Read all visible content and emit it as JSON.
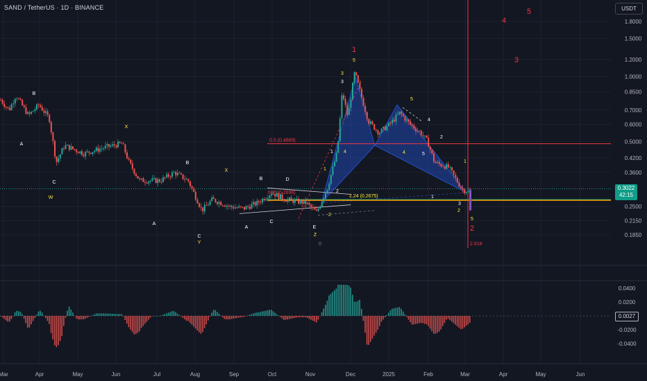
{
  "header": {
    "title": "SAND / TetherUS · 1D · BINANCE",
    "currency": "USDT"
  },
  "price_badge": {
    "price": "0.3022",
    "countdown": "42:15"
  },
  "osc_badge": "0.0027",
  "colors": {
    "bg": "#131722",
    "up": "#26a69a",
    "down": "#ef5350",
    "fib_red": "#f23645",
    "pattern_fill": "#2962ff",
    "orange": "#ff9800",
    "label_white": "#ffffff",
    "label_yellow": "#ffeb3b"
  },
  "chart_data": [
    {
      "type": "candlestick",
      "scale": "log",
      "ylim": [
        0.16,
        2.0
      ],
      "x_ticks": [
        "Mar",
        "Apr",
        "May",
        "Jun",
        "Jul",
        "Aug",
        "Sep",
        "Oct",
        "Nov",
        "Dec",
        "2025",
        "Feb",
        "Mar",
        "Apr",
        "May",
        "Jun"
      ],
      "y_ticks": [
        "1.8000",
        "1.5000",
        "1.2000",
        "1.0000",
        "0.8500",
        "0.7000",
        "0.6000",
        "0.5000",
        "0.4200",
        "0.3600",
        "0.2500",
        "0.2150",
        "0.1850"
      ],
      "series": [
        {
          "x": "2024-03",
          "y": 0.78
        },
        {
          "x": "2024-03-15",
          "y": 0.72
        },
        {
          "x": "2024-04-01",
          "y": 0.66
        },
        {
          "x": "2024-04-10",
          "y": 0.75
        },
        {
          "x": "2024-04-20",
          "y": 0.62
        },
        {
          "x": "2024-05-01",
          "y": 0.45
        },
        {
          "x": "2024-05-15",
          "y": 0.47
        },
        {
          "x": "2024-06-01",
          "y": 0.45
        },
        {
          "x": "2024-06-10",
          "y": 0.47
        },
        {
          "x": "2024-06-20",
          "y": 0.42
        },
        {
          "x": "2024-07-01",
          "y": 0.33
        },
        {
          "x": "2024-07-15",
          "y": 0.32
        },
        {
          "x": "2024-07-25",
          "y": 0.35
        },
        {
          "x": "2024-08-05",
          "y": 0.24
        },
        {
          "x": "2024-08-20",
          "y": 0.27
        },
        {
          "x": "2024-09-05",
          "y": 0.25
        },
        {
          "x": "2024-09-20",
          "y": 0.26
        },
        {
          "x": "2024-10-01",
          "y": 0.29
        },
        {
          "x": "2024-10-15",
          "y": 0.27
        },
        {
          "x": "2024-11-01",
          "y": 0.24
        },
        {
          "x": "2024-11-10",
          "y": 0.3
        },
        {
          "x": "2024-11-20",
          "y": 0.6
        },
        {
          "x": "2024-12-01",
          "y": 0.9
        },
        {
          "x": "2024-12-10",
          "y": 0.68
        },
        {
          "x": "2024-12-20",
          "y": 0.55
        },
        {
          "x": "2025-01-01",
          "y": 0.6
        },
        {
          "x": "2025-01-10",
          "y": 0.66
        },
        {
          "x": "2025-01-20",
          "y": 0.58
        },
        {
          "x": "2025-02-01",
          "y": 0.48
        },
        {
          "x": "2025-02-10",
          "y": 0.4
        },
        {
          "x": "2025-02-20",
          "y": 0.38
        },
        {
          "x": "2025-03-01",
          "y": 0.3
        }
      ],
      "annotations": {
        "fib_05": "0.5 (0.4889)",
        "fib_618": "618 (0.2696)",
        "fib_224": "2.24 (0.2675)",
        "fib_2618": "2.618",
        "wave_labels": [
          "B",
          "A",
          "C",
          "W",
          "X",
          "B",
          "A",
          "C",
          "Y",
          "X",
          "B",
          "D",
          "A",
          "C",
          "E",
          "Z",
          "1",
          "2",
          "3",
          "5",
          "4",
          "1",
          "2",
          "3",
          "4",
          "5",
          "1",
          "2",
          "3",
          "4",
          "5",
          "1",
          "2",
          "3",
          "4",
          "5",
          "2",
          "0"
        ]
      }
    },
    {
      "type": "bar",
      "name": "Oscillator",
      "y_ticks": [
        "0.0400",
        "0.0200",
        "-0.0200",
        "-0.0400"
      ],
      "ylim": [
        -0.05,
        0.05
      ],
      "current": 0.0027
    }
  ]
}
